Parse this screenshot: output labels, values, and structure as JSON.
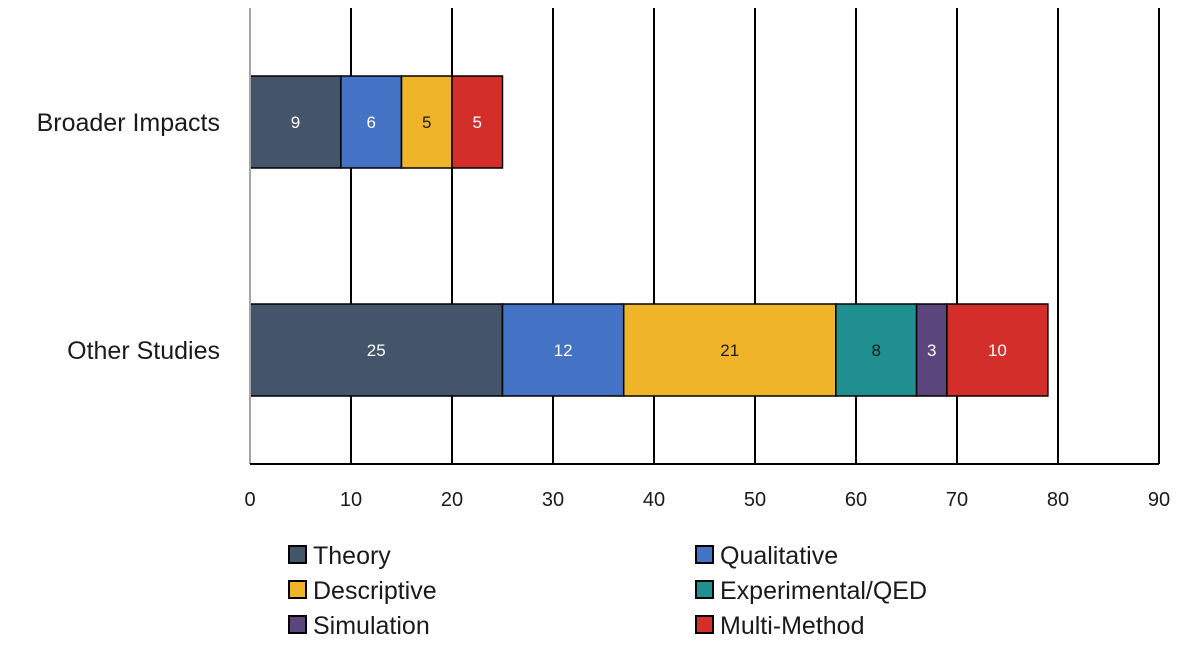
{
  "chart_data": {
    "type": "bar",
    "orientation": "horizontal",
    "stacked": true,
    "categories": [
      "Broader Impacts",
      "Other Studies"
    ],
    "series": [
      {
        "name": "Theory",
        "values": [
          9,
          25
        ],
        "color": "#44546a",
        "label_color": "#ffffff"
      },
      {
        "name": "Qualitative",
        "values": [
          6,
          12
        ],
        "color": "#4472c4",
        "label_color": "#ffffff"
      },
      {
        "name": "Descriptive",
        "values": [
          5,
          21
        ],
        "color": "#f0b429",
        "label_color": "#1a1a1a"
      },
      {
        "name": "Experimental/QED",
        "values": [
          null,
          8
        ],
        "color": "#1f8f8f",
        "label_color": "#1a1a1a"
      },
      {
        "name": "Simulation",
        "values": [
          null,
          3
        ],
        "color": "#5a467d",
        "label_color": "#ffffff"
      },
      {
        "name": "Multi-Method",
        "values": [
          5,
          10
        ],
        "color": "#d42e2a",
        "label_color": "#ffffff"
      }
    ],
    "xlim": [
      0,
      90
    ],
    "xticks": [
      0,
      10,
      20,
      30,
      40,
      50,
      60,
      70,
      80,
      90
    ],
    "grid": "vertical",
    "legend_position": "bottom",
    "title": "",
    "xlabel": "",
    "ylabel": ""
  }
}
